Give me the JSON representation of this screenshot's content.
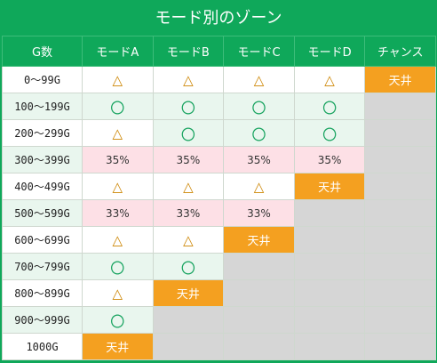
{
  "title": "モード別のゾーン",
  "headers": [
    "G数",
    "モードA",
    "モードB",
    "モードC",
    "モードD",
    "チャンス"
  ],
  "symbols": {
    "triangle": "△",
    "circle": "〇",
    "ceiling": "天井"
  },
  "rows": [
    {
      "label": "0〜99G",
      "cells": [
        "△",
        "△",
        "△",
        "△",
        "天井"
      ]
    },
    {
      "label": "100〜199G",
      "cells": [
        "〇",
        "〇",
        "〇",
        "〇",
        ""
      ]
    },
    {
      "label": "200〜299G",
      "cells": [
        "△",
        "〇",
        "〇",
        "〇",
        ""
      ]
    },
    {
      "label": "300〜399G",
      "cells": [
        "35%",
        "35%",
        "35%",
        "35%",
        ""
      ]
    },
    {
      "label": "400〜499G",
      "cells": [
        "△",
        "△",
        "△",
        "天井",
        ""
      ]
    },
    {
      "label": "500〜599G",
      "cells": [
        "33%",
        "33%",
        "33%",
        "",
        ""
      ]
    },
    {
      "label": "600〜699G",
      "cells": [
        "△",
        "△",
        "天井",
        "",
        ""
      ]
    },
    {
      "label": "700〜799G",
      "cells": [
        "〇",
        "〇",
        "",
        "",
        ""
      ]
    },
    {
      "label": "800〜899G",
      "cells": [
        "△",
        "天井",
        "",
        "",
        ""
      ]
    },
    {
      "label": "900〜999G",
      "cells": [
        "〇",
        "",
        "",
        "",
        ""
      ]
    },
    {
      "label": "1000G",
      "cells": [
        "天井",
        "",
        "",
        "",
        ""
      ]
    }
  ],
  "colors": {
    "header_green": "#0fa85a",
    "row_tint": "#e9f6ee",
    "percent_pink": "#fde0e6",
    "ceiling_orange": "#f4a020",
    "empty_gray": "#d6d6d6",
    "triangle_color": "#cc8400",
    "circle_color": "#17a35f"
  }
}
